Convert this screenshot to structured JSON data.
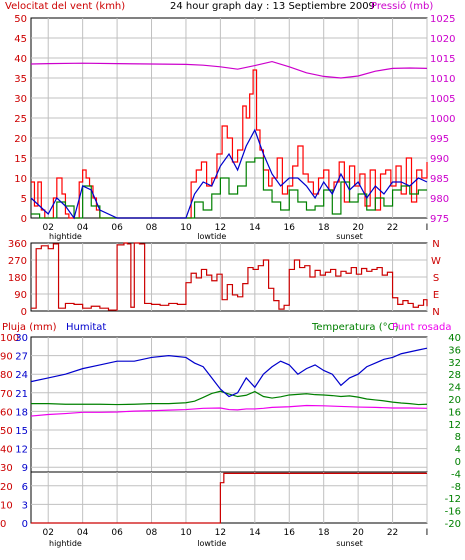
{
  "header": {
    "wind_title": "Velocitat del vent (kmh)",
    "graph_title": "24 hour graph day : 13 Septiembre 2009",
    "pressure_title": "Pressió (mb)"
  },
  "labels": {
    "rain": "Pluja (mm)",
    "humidity": "Humitat",
    "temperature": "Temperatura (°C)",
    "dewpoint": "Punt rosada"
  },
  "x_axis": {
    "ticks": [
      "02",
      "04",
      "06",
      "08",
      "10",
      "12",
      "14",
      "16",
      "18",
      "20",
      "22",
      "I"
    ],
    "events": [
      {
        "label": "hightide",
        "near": "03"
      },
      {
        "label": "lowtide",
        "near": "11.5"
      },
      {
        "label": "sunset",
        "near": "19.5"
      }
    ]
  },
  "colors": {
    "wind_speed": "#ff0000",
    "wind_avg": "#0000cc",
    "wind_gust_green": "#008000",
    "pressure": "#cc00cc",
    "direction": "#cc0000",
    "humidity": "#0000cc",
    "temperature": "#008000",
    "dewpoint": "#ee00ee",
    "rain": "#cc0000",
    "grid": "#c0c0c0",
    "axis": "#000000"
  },
  "chart_data": [
    {
      "type": "line",
      "title": "24 hour graph day : 13 Septiembre 2009",
      "x_range": [
        1,
        24
      ],
      "left_axis": {
        "label": "Velocitat del vent (kmh)",
        "ticks": [
          0,
          5,
          10,
          15,
          20,
          25,
          30,
          35,
          40,
          45,
          50
        ],
        "ylim": [
          0,
          50
        ]
      },
      "right_axis": {
        "label": "Pressió (mb)",
        "ticks": [
          975,
          980,
          985,
          990,
          995,
          1000,
          1005,
          1010,
          1015,
          1020,
          1025
        ],
        "ylim": [
          975,
          1025
        ]
      },
      "series": [
        {
          "name": "Velocitat del vent (kmh)",
          "axis": "left",
          "color": "#ff0000",
          "x": [
            1,
            1.2,
            1.4,
            1.6,
            1.8,
            2,
            2.3,
            2.5,
            2.8,
            3,
            3.2,
            3.4,
            3.6,
            3.8,
            4,
            4.2,
            4.4,
            4.6,
            4.8,
            5,
            5.5,
            6,
            7,
            8,
            9,
            10,
            10.3,
            10.6,
            10.9,
            11.2,
            11.5,
            11.8,
            12.1,
            12.4,
            12.7,
            13,
            13.3,
            13.5,
            13.7,
            13.9,
            14.1,
            14.3,
            14.5,
            14.8,
            15,
            15.3,
            15.6,
            15.9,
            16.2,
            16.5,
            16.8,
            17.1,
            17.4,
            17.7,
            18,
            18.3,
            18.6,
            18.9,
            19.2,
            19.5,
            19.8,
            20.1,
            20.4,
            20.7,
            21,
            21.3,
            21.6,
            21.9,
            22.2,
            22.5,
            22.8,
            23.1,
            23.4,
            23.7,
            24
          ],
          "y": [
            9,
            3,
            9,
            2,
            0,
            0,
            5,
            10,
            6,
            1,
            0,
            0,
            0,
            9,
            12,
            10,
            8,
            5,
            2,
            0,
            0,
            0,
            0,
            0,
            0,
            0,
            9,
            12,
            14,
            8,
            10,
            16,
            23,
            20,
            14,
            17,
            28,
            25,
            31,
            37,
            22,
            17,
            12,
            8,
            10,
            15,
            6,
            8,
            13,
            18,
            11,
            9,
            6,
            10,
            12,
            7,
            9,
            14,
            4,
            13,
            8,
            11,
            3,
            12,
            2,
            11,
            12,
            8,
            13,
            6,
            15,
            4,
            12,
            10,
            14
          ]
        },
        {
          "name": "Wind average",
          "axis": "left",
          "color": "#0000cc",
          "x": [
            1,
            1.5,
            2,
            2.5,
            3,
            3.5,
            4,
            4.5,
            5,
            6,
            8,
            10,
            10.5,
            11,
            11.5,
            12,
            12.5,
            13,
            13.5,
            14,
            14.5,
            15,
            15.5,
            16,
            16.5,
            17,
            17.5,
            18,
            18.5,
            19,
            19.5,
            20,
            20.5,
            21,
            21.5,
            22,
            22.5,
            23,
            23.5,
            24
          ],
          "y": [
            5,
            3,
            1,
            5,
            3,
            0,
            8,
            7,
            2,
            0,
            0,
            0,
            6,
            9,
            8,
            13,
            16,
            12,
            18,
            22,
            16,
            11,
            8,
            10,
            10,
            8,
            5,
            9,
            6,
            11,
            7,
            9,
            5,
            8,
            6,
            9,
            9,
            8,
            10,
            9
          ]
        },
        {
          "name": "Wind green",
          "axis": "left",
          "color": "#008000",
          "x": [
            1,
            1.5,
            2,
            2.5,
            3,
            3.5,
            4,
            4.5,
            5,
            6,
            8,
            10,
            10.5,
            11,
            11.5,
            12,
            12.5,
            13,
            13.5,
            14,
            14.5,
            15,
            15.5,
            16,
            16.5,
            17,
            17.5,
            18,
            18.5,
            19,
            19.5,
            20,
            20.5,
            21,
            21.5,
            22,
            22.5,
            23,
            23.5,
            24
          ],
          "y": [
            1,
            0,
            0,
            4,
            3,
            0,
            8,
            3,
            0,
            0,
            0,
            0,
            4,
            2,
            6,
            10,
            6,
            8,
            14,
            15,
            7,
            4,
            2,
            7,
            4,
            2,
            3,
            7,
            1,
            9,
            4,
            6,
            2,
            5,
            3,
            7,
            8,
            6,
            7,
            7
          ]
        },
        {
          "name": "Pressió (mb)",
          "axis": "right",
          "color": "#cc00cc",
          "x": [
            1,
            2,
            4,
            6,
            8,
            10,
            11,
            12,
            13,
            14,
            15,
            16,
            17,
            18,
            19,
            20,
            21,
            22,
            23,
            24
          ],
          "y": [
            1013.5,
            1013.6,
            1013.7,
            1013.6,
            1013.5,
            1013.4,
            1013.2,
            1012.8,
            1012.2,
            1013.1,
            1014.1,
            1012.8,
            1011.3,
            1010.4,
            1010.0,
            1010.5,
            1011.7,
            1012.4,
            1012.5,
            1012.4
          ]
        }
      ]
    },
    {
      "type": "scatter",
      "x_range": [
        1,
        24
      ],
      "left_axis": {
        "ticks": [
          0,
          90,
          180,
          270,
          360
        ],
        "ylim": [
          0,
          360
        ]
      },
      "right_axis": {
        "ticks": [
          "N",
          "W",
          "S",
          "E",
          "N"
        ]
      },
      "series": [
        {
          "name": "Wind direction",
          "color": "#cc0000",
          "x": [
            1,
            1.3,
            1.6,
            2,
            2.3,
            2.6,
            3,
            3.5,
            4,
            4.5,
            5,
            5.5,
            6,
            6.2,
            6.4,
            6.6,
            6.8,
            7,
            7.3,
            7.6,
            8,
            8.5,
            9,
            9.5,
            10,
            10.3,
            10.6,
            10.9,
            11.2,
            11.5,
            11.8,
            12.1,
            12.4,
            12.7,
            13,
            13.3,
            13.6,
            13.9,
            14.2,
            14.5,
            14.8,
            15.1,
            15.4,
            15.7,
            16,
            16.3,
            16.6,
            16.9,
            17.2,
            17.5,
            17.8,
            18.1,
            18.4,
            18.7,
            19,
            19.3,
            19.6,
            19.9,
            20.2,
            20.5,
            20.8,
            21.1,
            21.4,
            21.7,
            22,
            22.3,
            22.6,
            22.9,
            23.2,
            23.5,
            23.8,
            24
          ],
          "y": [
            15,
            330,
            345,
            330,
            355,
            15,
            40,
            35,
            15,
            25,
            15,
            5,
            350,
            350,
            360,
            355,
            20,
            360,
            355,
            40,
            35,
            30,
            40,
            35,
            150,
            200,
            175,
            220,
            190,
            160,
            195,
            60,
            140,
            85,
            75,
            145,
            230,
            220,
            240,
            270,
            120,
            55,
            10,
            30,
            220,
            270,
            230,
            240,
            180,
            215,
            190,
            205,
            220,
            185,
            210,
            200,
            230,
            195,
            225,
            210,
            220,
            230,
            190,
            205,
            70,
            35,
            55,
            40,
            20,
            30,
            60,
            25
          ]
        }
      ]
    },
    {
      "type": "line",
      "x_range": [
        1,
        24
      ],
      "left_axis": {
        "label": "Pluja (mm)",
        "ticks": [
          0,
          10,
          20,
          30,
          40,
          50,
          60,
          70,
          80,
          90,
          100
        ],
        "ylim": [
          0,
          100
        ]
      },
      "left_inner_axis": {
        "label": "Humitat",
        "ticks": [
          0,
          3,
          6,
          9,
          12,
          15,
          18,
          21,
          24,
          27,
          30
        ],
        "ylim": [
          0,
          30
        ]
      },
      "right_axis": {
        "label": "Temperatura (°C)",
        "ticks": [
          -20,
          -16,
          -12,
          -8,
          -4,
          0,
          4,
          8,
          12,
          16,
          20,
          24,
          28,
          32,
          36,
          40
        ],
        "ylim": [
          -20,
          40
        ]
      },
      "series": [
        {
          "name": "Humitat",
          "axis": "left",
          "color": "#0000cc",
          "x": [
            1,
            2,
            3,
            4,
            5,
            6,
            7,
            8,
            9,
            10,
            10.5,
            11,
            11.5,
            12,
            12.5,
            13,
            13.5,
            14,
            14.5,
            15,
            15.5,
            16,
            16.5,
            17,
            17.5,
            18,
            18.5,
            19,
            19.5,
            20,
            20.5,
            21,
            21.5,
            22,
            22.5,
            23,
            23.5,
            24
          ],
          "y": [
            76,
            78,
            80,
            83,
            85,
            87,
            87,
            89,
            90,
            89,
            86,
            84,
            78,
            72,
            68,
            70,
            78,
            73,
            80,
            84,
            87,
            85,
            80,
            83,
            85,
            82,
            80,
            74,
            78,
            80,
            84,
            86,
            88,
            89,
            91,
            92,
            93,
            94
          ]
        },
        {
          "name": "Temperatura (°C)",
          "axis": "right",
          "color": "#008000",
          "x": [
            1,
            2,
            3,
            4,
            5,
            6,
            7,
            8,
            9,
            10,
            10.5,
            11,
            11.5,
            12,
            12.5,
            13,
            13.5,
            14,
            14.5,
            15,
            15.5,
            16,
            16.5,
            17,
            17.5,
            18,
            18.5,
            19,
            19.5,
            20,
            20.5,
            21,
            21.5,
            22,
            22.5,
            23,
            23.5,
            24
          ],
          "y": [
            18.5,
            18.5,
            18.3,
            18.3,
            18.3,
            18.2,
            18.3,
            18.5,
            18.5,
            18.8,
            19.3,
            20.5,
            21.8,
            22.5,
            21.6,
            20.8,
            21.2,
            22.4,
            20.8,
            20.3,
            20.7,
            21.3,
            21.5,
            21.7,
            21.4,
            21.3,
            21.1,
            20.8,
            21.0,
            20.6,
            20.0,
            19.7,
            19.4,
            19.0,
            18.7,
            18.5,
            18.2,
            18.3
          ]
        },
        {
          "name": "Punt rosada",
          "axis": "right",
          "color": "#ee00ee",
          "x": [
            1,
            2,
            3,
            4,
            5,
            6,
            7,
            8,
            9,
            10,
            11,
            12,
            12.5,
            13,
            13.5,
            14,
            14.5,
            15,
            16,
            17,
            18,
            19,
            20,
            21,
            22,
            23,
            24
          ],
          "y": [
            14.5,
            15.0,
            15.3,
            15.7,
            15.7,
            15.8,
            16.1,
            16.2,
            16.4,
            16.6,
            17.0,
            17.1,
            16.6,
            16.5,
            16.8,
            16.8,
            17.0,
            17.3,
            17.5,
            17.9,
            17.8,
            17.6,
            17.4,
            17.3,
            17.1,
            17.1,
            17.0
          ]
        },
        {
          "name": "Pluja (mm)",
          "axis": "left_inner",
          "color": "#cc0000",
          "x": [
            1,
            11.8,
            12,
            12.2,
            24
          ],
          "y": [
            0,
            0,
            6.5,
            8,
            8
          ]
        }
      ]
    }
  ]
}
